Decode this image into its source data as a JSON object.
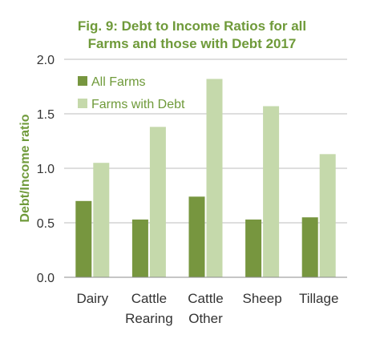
{
  "chart_data": {
    "type": "bar",
    "title_lines": [
      "Fig. 9: Debt to Income Ratios for all",
      "Farms and those with Debt 2017"
    ],
    "xlabel": "",
    "ylabel": "Debt/Income ratio",
    "ylim": [
      0,
      2.0
    ],
    "yticks": [
      "0.0",
      "0.5",
      "1.0",
      "1.5",
      "2.0"
    ],
    "ytick_values": [
      0,
      0.5,
      1.0,
      1.5,
      2.0
    ],
    "categories": [
      [
        "Dairy"
      ],
      [
        "Cattle",
        "Rearing"
      ],
      [
        "Cattle",
        "Other"
      ],
      [
        "Sheep"
      ],
      [
        "Tillage"
      ]
    ],
    "series": [
      {
        "name": "All Farms",
        "color": "#77963f",
        "values": [
          0.7,
          0.53,
          0.74,
          0.53,
          0.55
        ]
      },
      {
        "name": "Farms with Debt",
        "color": "#c5d9ab",
        "values": [
          1.05,
          1.38,
          1.82,
          1.57,
          1.13
        ]
      }
    ],
    "legend_position": "top-left",
    "grid": true,
    "text_color": "#6f9a3a",
    "tick_color": "#333333"
  }
}
